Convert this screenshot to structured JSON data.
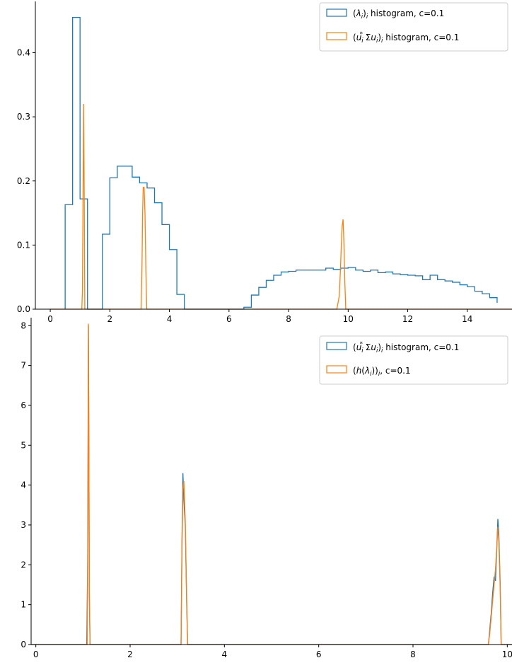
{
  "colors": {
    "series1": "#1f77b4",
    "series2": "#ff7f0e",
    "axis": "#000000",
    "legend_border": "#cccccc"
  },
  "chart_data": [
    {
      "type": "histogram",
      "xlim": [
        -0.5,
        15.5
      ],
      "ylim": [
        0,
        0.48
      ],
      "xticks": [
        0,
        2,
        4,
        6,
        8,
        10,
        12,
        14
      ],
      "yticks": [
        0.0,
        0.1,
        0.2,
        0.3,
        0.4
      ],
      "grid": false,
      "legend_placement": "top-right",
      "series": [
        {
          "name": "(λ_i)_i histogram, c=0.1",
          "legend": {
            "open": "(",
            "lambda": "λ",
            "sub_i": "i",
            "close": ")",
            "sub_i2": "i",
            "rest": " histogram, c=0.1"
          },
          "edges": [
            0.5,
            0.75,
            1.0,
            1.25,
            1.5,
            1.75,
            2.0,
            2.25,
            2.5,
            2.75,
            3.0,
            3.25,
            3.5,
            3.75,
            4.0,
            4.25,
            4.5,
            4.75,
            5.0,
            5.25,
            5.5,
            5.75,
            6.0,
            6.25,
            6.5,
            6.75,
            7.0,
            7.25,
            7.5,
            7.75,
            8.0,
            8.25,
            8.5,
            8.75,
            9.0,
            9.25,
            9.5,
            9.75,
            10.0,
            10.25,
            10.5,
            10.75,
            11.0,
            11.25,
            11.5,
            11.75,
            12.0,
            12.25,
            12.5,
            12.75,
            13.0,
            13.25,
            13.5,
            13.75,
            14.0,
            14.25,
            14.5,
            14.75,
            15.0
          ],
          "values": [
            0.163,
            0.455,
            0.172,
            0.0,
            0.0,
            0.117,
            0.205,
            0.223,
            0.223,
            0.206,
            0.197,
            0.189,
            0.166,
            0.132,
            0.093,
            0.023,
            0.0,
            0.0,
            0.0,
            0.0,
            0.0,
            0.0,
            0.0,
            0.0,
            0.003,
            0.022,
            0.034,
            0.045,
            0.053,
            0.058,
            0.059,
            0.061,
            0.061,
            0.061,
            0.061,
            0.064,
            0.062,
            0.064,
            0.065,
            0.061,
            0.059,
            0.061,
            0.057,
            0.058,
            0.055,
            0.054,
            0.053,
            0.052,
            0.046,
            0.053,
            0.046,
            0.044,
            0.042,
            0.038,
            0.035,
            0.028,
            0.024,
            0.018,
            0.01
          ]
        },
        {
          "name": "(u_i^* Σ u_i)_i histogram, c=0.1",
          "legend": {
            "open": "(",
            "u": "u",
            "sub_i": "i",
            "sup_star": "*",
            "sigma": " Σ",
            "u2": "u",
            "sub_i2": "i",
            "close": ")",
            "sub_i3": "i",
            "rest": " histogram, c=0.1"
          },
          "points": [
            [
              0.0,
              0.0
            ],
            [
              1.06,
              0.0
            ],
            [
              1.08,
              0.03
            ],
            [
              1.1,
              0.17
            ],
            [
              1.12,
              0.32
            ],
            [
              1.14,
              0.18
            ],
            [
              1.16,
              0.0
            ],
            [
              3.05,
              0.0
            ],
            [
              3.08,
              0.07
            ],
            [
              3.1,
              0.15
            ],
            [
              3.12,
              0.19
            ],
            [
              3.15,
              0.19
            ],
            [
              3.18,
              0.15
            ],
            [
              3.21,
              0.06
            ],
            [
              3.24,
              0.0
            ],
            [
              9.62,
              0.0
            ],
            [
              9.66,
              0.01
            ],
            [
              9.7,
              0.02
            ],
            [
              9.74,
              0.06
            ],
            [
              9.77,
              0.1
            ],
            [
              9.8,
              0.13
            ],
            [
              9.83,
              0.14
            ],
            [
              9.86,
              0.1
            ],
            [
              9.89,
              0.04
            ],
            [
              9.92,
              0.0
            ],
            [
              15.5,
              0.0
            ]
          ]
        }
      ]
    },
    {
      "type": "line",
      "xlim": [
        -0.1,
        10.1
      ],
      "ylim": [
        0,
        8.2
      ],
      "xticks": [
        0,
        2,
        4,
        6,
        8,
        10
      ],
      "yticks": [
        0,
        1,
        2,
        3,
        4,
        5,
        6,
        7,
        8
      ],
      "grid": false,
      "legend_placement": "top-right",
      "series": [
        {
          "name": "(u_i^* Σ u_i)_i histogram, c=0.1",
          "legend": {
            "open": "(",
            "u": "u",
            "sub_i": "i",
            "sup_star": "*",
            "sigma": " Σ",
            "u2": "u",
            "sub_i2": "i",
            "close": ")",
            "sub_i3": "i",
            "rest": " histogram, c=0.1"
          },
          "points": [
            [
              -0.1,
              0.0
            ],
            [
              1.08,
              0.0
            ],
            [
              1.1,
              2.1
            ],
            [
              1.115,
              8.0
            ],
            [
              1.125,
              5.2
            ],
            [
              1.135,
              1.2
            ],
            [
              1.15,
              0.0
            ],
            [
              3.08,
              0.0
            ],
            [
              3.1,
              2.6
            ],
            [
              3.12,
              4.3
            ],
            [
              3.14,
              3.6
            ],
            [
              3.17,
              3.0
            ],
            [
              3.2,
              1.0
            ],
            [
              3.22,
              0.0
            ],
            [
              9.6,
              0.0
            ],
            [
              9.63,
              0.4
            ],
            [
              9.66,
              0.8
            ],
            [
              9.69,
              1.3
            ],
            [
              9.72,
              1.7
            ],
            [
              9.75,
              1.6
            ],
            [
              9.77,
              2.2
            ],
            [
              9.8,
              3.15
            ],
            [
              9.82,
              2.8
            ],
            [
              9.85,
              1.5
            ],
            [
              9.87,
              0.0
            ],
            [
              10.1,
              0.0
            ]
          ]
        },
        {
          "name": "(h(λ_i))_i, c=0.1",
          "legend": {
            "open": "(",
            "h": "h",
            "paren_open": "(",
            "lambda": "λ",
            "sub_i": "i",
            "paren_close": ")",
            "close": ")",
            "sub_i2": "i",
            "rest": ", c=0.1"
          },
          "points": [
            [
              -0.1,
              0.0
            ],
            [
              1.09,
              0.0
            ],
            [
              1.105,
              3.0
            ],
            [
              1.115,
              8.05
            ],
            [
              1.125,
              5.0
            ],
            [
              1.135,
              1.4
            ],
            [
              1.15,
              0.0
            ],
            [
              3.08,
              0.0
            ],
            [
              3.1,
              2.4
            ],
            [
              3.12,
              3.9
            ],
            [
              3.14,
              4.1
            ],
            [
              3.17,
              3.1
            ],
            [
              3.2,
              1.1
            ],
            [
              3.22,
              0.0
            ],
            [
              9.6,
              0.0
            ],
            [
              9.63,
              0.3
            ],
            [
              9.66,
              0.7
            ],
            [
              9.69,
              1.1
            ],
            [
              9.72,
              1.5
            ],
            [
              9.75,
              1.9
            ],
            [
              9.78,
              2.5
            ],
            [
              9.8,
              2.95
            ],
            [
              9.82,
              2.6
            ],
            [
              9.85,
              1.4
            ],
            [
              9.87,
              0.0
            ],
            [
              10.1,
              0.0
            ]
          ]
        }
      ]
    }
  ]
}
